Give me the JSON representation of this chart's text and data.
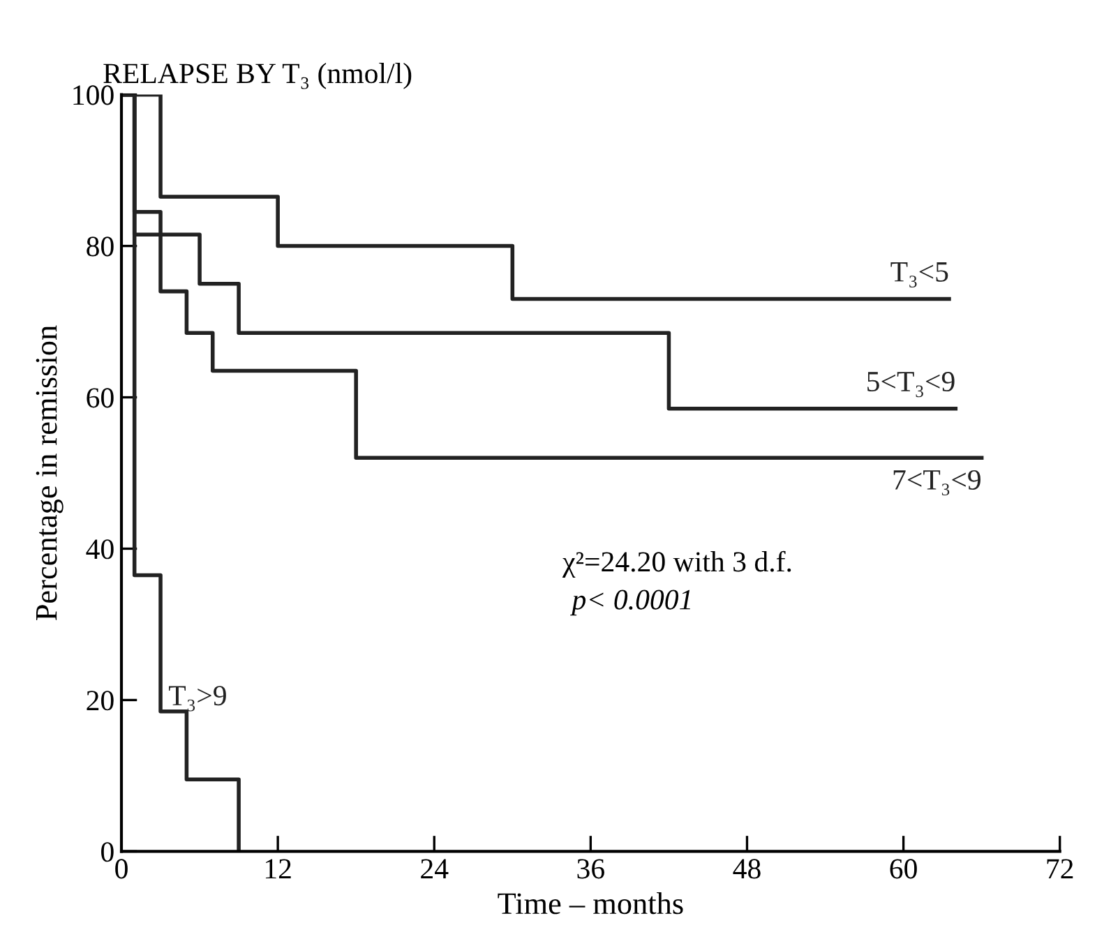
{
  "chart_data": {
    "type": "step",
    "title": "RELAPSE BY T₃ (nmol/l)",
    "xlabel": "Time – months",
    "ylabel": "Percentage in remission",
    "series": [
      {
        "name": "T₃<5",
        "color": "#222222",
        "x": [
          0,
          3,
          12,
          30,
          63.5
        ],
        "values": [
          100,
          86.5,
          80,
          73,
          73
        ]
      },
      {
        "name": "5<T₃<9",
        "color": "#222222",
        "x": [
          0,
          1,
          6,
          9,
          42,
          64
        ],
        "values": [
          100,
          81.5,
          75,
          68.5,
          58.5,
          58.5
        ]
      },
      {
        "name": "7<T₃<9",
        "color": "#222222",
        "x": [
          0,
          1,
          3,
          5,
          7,
          18,
          66
        ],
        "values": [
          100,
          84.5,
          74,
          68.5,
          63.5,
          52,
          52
        ]
      },
      {
        "name": "T₃>9",
        "color": "#222222",
        "x": [
          0,
          1,
          3,
          5,
          9
        ],
        "values": [
          100,
          36.5,
          18.5,
          9.5,
          0
        ]
      }
    ],
    "annotations": [
      "χ²=24.20 with 3 d.f.",
      "p< 0.0001"
    ],
    "xlim": [
      0,
      72
    ],
    "xticks": [
      0,
      12,
      24,
      36,
      48,
      60,
      72
    ],
    "ylim": [
      0,
      100
    ],
    "yticks": [
      0,
      20,
      40,
      60,
      80,
      100
    ],
    "grid": false,
    "legend": false,
    "line_style": "solid",
    "marker": "none"
  }
}
